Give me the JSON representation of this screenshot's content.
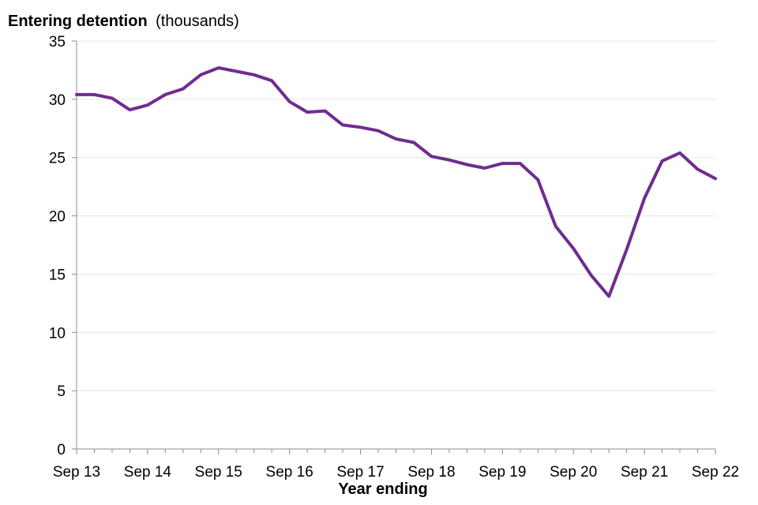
{
  "chart_data": {
    "type": "line",
    "title": "Entering detention",
    "title_unit": "(thousands)",
    "xlabel": "Year ending",
    "ylabel": "",
    "ylim": [
      0,
      35
    ],
    "y_ticks": [
      "0",
      "5",
      "10",
      "15",
      "20",
      "25",
      "30",
      "35"
    ],
    "x_ticks": [
      "Sep 13",
      "Sep 14",
      "Sep 15",
      "Sep 16",
      "Sep 17",
      "Sep 18",
      "Sep 19",
      "Sep 20",
      "Sep 21",
      "Sep 22"
    ],
    "grid": true,
    "series": [
      {
        "color": "#6f2c8f",
        "x": [
          "Sep 13",
          "Dec 13",
          "Mar 14",
          "Jun 14",
          "Sep 14",
          "Dec 14",
          "Mar 15",
          "Jun 15",
          "Sep 15",
          "Dec 15",
          "Mar 16",
          "Jun 16",
          "Sep 16",
          "Dec 16",
          "Mar 17",
          "Jun 17",
          "Sep 17",
          "Dec 17",
          "Mar 18",
          "Jun 18",
          "Sep 18",
          "Dec 18",
          "Mar 19",
          "Jun 19",
          "Sep 19",
          "Dec 19",
          "Mar 20",
          "Jun 20",
          "Sep 20",
          "Dec 20",
          "Mar 21",
          "Jun 21",
          "Sep 21",
          "Dec 21",
          "Mar 22",
          "Jun 22",
          "Sep 22"
        ],
        "values": [
          30.4,
          30.4,
          30.1,
          29.1,
          29.5,
          30.4,
          30.9,
          32.1,
          32.7,
          32.4,
          32.1,
          31.6,
          29.8,
          28.9,
          29.0,
          27.8,
          27.6,
          27.3,
          26.6,
          26.3,
          25.1,
          24.8,
          24.4,
          24.1,
          24.5,
          24.5,
          23.1,
          19.1,
          17.2,
          14.9,
          13.1,
          17.1,
          21.5,
          24.7,
          25.4,
          24.0,
          23.2
        ]
      }
    ]
  }
}
